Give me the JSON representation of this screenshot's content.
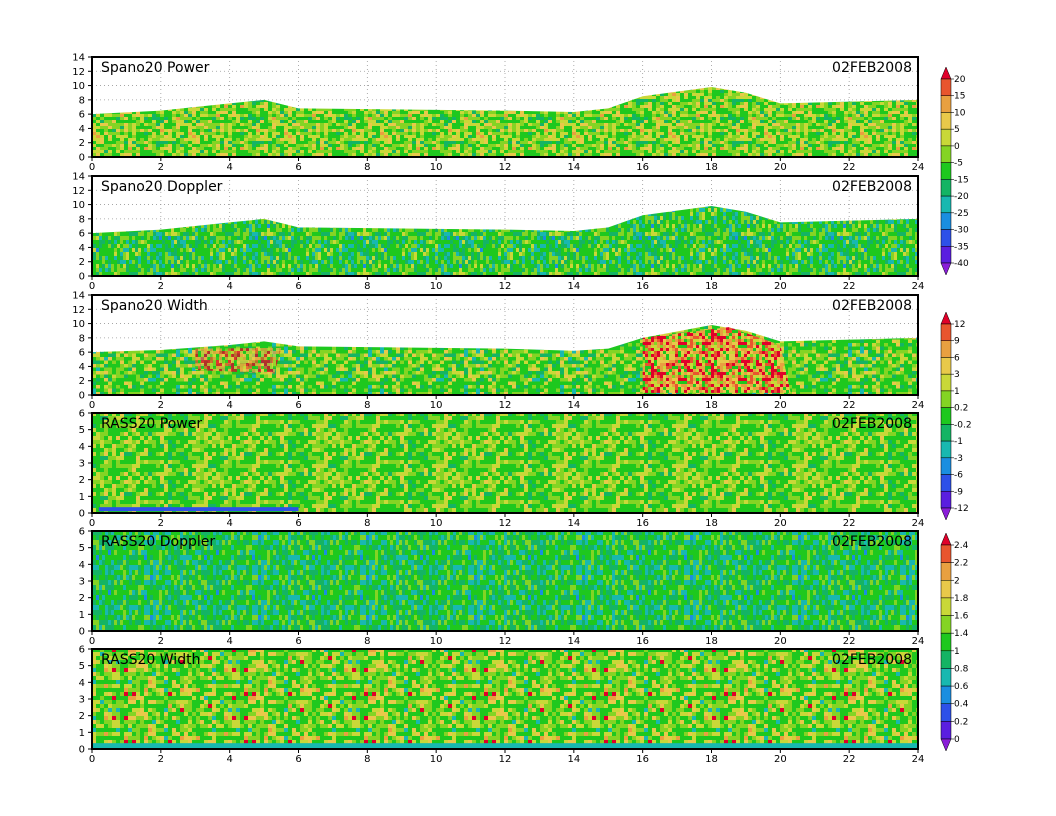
{
  "chart_data": [
    {
      "type": "heatmap",
      "title": "Spano20  Power",
      "date": "02FEB2008",
      "xlim": [
        0,
        24
      ],
      "ylim": [
        0,
        14
      ],
      "xticks": [
        0,
        2,
        4,
        6,
        8,
        10,
        12,
        14,
        16,
        18,
        20,
        22,
        24
      ],
      "yticks": [
        0,
        2,
        4,
        6,
        8,
        10,
        12,
        14
      ],
      "grid": true,
      "colorbar": "power",
      "top_height": [
        [
          0,
          6
        ],
        [
          2,
          6.5
        ],
        [
          4,
          7.5
        ],
        [
          5,
          8
        ],
        [
          6,
          6.8
        ],
        [
          10,
          6.6
        ],
        [
          12,
          6.5
        ],
        [
          14,
          6.3
        ],
        [
          15,
          6.8
        ],
        [
          16,
          8.5
        ],
        [
          18,
          9.8
        ],
        [
          19,
          9
        ],
        [
          20,
          7.5
        ],
        [
          24,
          8
        ]
      ]
    },
    {
      "type": "heatmap",
      "title": "Spano20  Doppler",
      "date": "02FEB2008",
      "xlim": [
        0,
        24
      ],
      "ylim": [
        0,
        14
      ],
      "xticks": [
        0,
        2,
        4,
        6,
        8,
        10,
        12,
        14,
        16,
        18,
        20,
        22,
        24
      ],
      "yticks": [
        0,
        2,
        4,
        6,
        8,
        10,
        12,
        14
      ],
      "grid": true,
      "colorbar": "doppler",
      "top_height": [
        [
          0,
          6
        ],
        [
          2,
          6.5
        ],
        [
          4,
          7.5
        ],
        [
          5,
          8
        ],
        [
          6,
          6.8
        ],
        [
          10,
          6.6
        ],
        [
          12,
          6.5
        ],
        [
          14,
          6.3
        ],
        [
          15,
          6.8
        ],
        [
          16,
          8.5
        ],
        [
          18,
          9.8
        ],
        [
          19,
          9
        ],
        [
          20,
          7.5
        ],
        [
          24,
          8
        ]
      ]
    },
    {
      "type": "heatmap",
      "title": "Spano20  Width",
      "date": "02FEB2008",
      "xlim": [
        0,
        24
      ],
      "ylim": [
        0,
        14
      ],
      "xticks": [
        0,
        2,
        4,
        6,
        8,
        10,
        12,
        14,
        16,
        18,
        20,
        22,
        24
      ],
      "yticks": [
        0,
        2,
        4,
        6,
        8,
        10,
        12,
        14
      ],
      "grid": true,
      "colorbar": "width",
      "top_height": [
        [
          0,
          6
        ],
        [
          2,
          6.3
        ],
        [
          4,
          7
        ],
        [
          5,
          7.5
        ],
        [
          6,
          6.8
        ],
        [
          10,
          6.6
        ],
        [
          12,
          6.5
        ],
        [
          14,
          6.2
        ],
        [
          15,
          6.5
        ],
        [
          16,
          8
        ],
        [
          18,
          9.8
        ],
        [
          19,
          9
        ],
        [
          20,
          7.5
        ],
        [
          24,
          8
        ]
      ]
    },
    {
      "type": "heatmap",
      "title": "RASS20  Power",
      "date": "02FEB2008",
      "xlim": [
        0,
        24
      ],
      "ylim": [
        0,
        6
      ],
      "xticks": [
        0,
        2,
        4,
        6,
        8,
        10,
        12,
        14,
        16,
        18,
        20,
        22,
        24
      ],
      "yticks": [
        0,
        1,
        2,
        3,
        4,
        5,
        6
      ],
      "grid": false,
      "colorbar": "none",
      "top_height": [
        [
          0,
          6
        ],
        [
          24,
          6
        ]
      ]
    },
    {
      "type": "heatmap",
      "title": "RASS20  Doppler",
      "date": "02FEB2008",
      "xlim": [
        0,
        24
      ],
      "ylim": [
        0,
        6
      ],
      "xticks": [
        0,
        2,
        4,
        6,
        8,
        10,
        12,
        14,
        16,
        18,
        20,
        22,
        24
      ],
      "yticks": [
        0,
        1,
        2,
        3,
        4,
        5,
        6
      ],
      "grid": false,
      "colorbar": "rass_doppler",
      "top_height": [
        [
          0,
          6
        ],
        [
          24,
          6
        ]
      ]
    },
    {
      "type": "heatmap",
      "title": "RASS20  Width",
      "date": "02FEB2008",
      "xlim": [
        0,
        24
      ],
      "ylim": [
        0,
        6
      ],
      "xticks": [
        0,
        2,
        4,
        6,
        8,
        10,
        12,
        14,
        16,
        18,
        20,
        22,
        24
      ],
      "yticks": [
        0,
        1,
        2,
        3,
        4,
        5,
        6
      ],
      "grid": false,
      "colorbar": "rass_width",
      "top_height": [
        [
          0,
          6
        ],
        [
          24,
          6
        ]
      ]
    }
  ],
  "colorbars": {
    "power": {
      "labels": [
        "20",
        "15",
        "10",
        "5",
        "0",
        "-5",
        "-15",
        "-20",
        "-25",
        "-30",
        "-35",
        "-40"
      ],
      "colors": [
        "#e0002a",
        "#e8552e",
        "#e8a040",
        "#e8c94a",
        "#c9d838",
        "#84d424",
        "#1ec81e",
        "#14b464",
        "#18b8b0",
        "#1a8ee0",
        "#2d50e8",
        "#5a1ee0",
        "#8a1ed8"
      ]
    },
    "doppler": {
      "labels": [],
      "colors": []
    },
    "width": {
      "labels": [
        "12",
        "9",
        "6",
        "3",
        "1",
        "0.2",
        "-0.2",
        "-1",
        "-3",
        "-6",
        "-9",
        "-12"
      ],
      "colors": [
        "#e0002a",
        "#e8552e",
        "#e8a040",
        "#e8c94a",
        "#c9d838",
        "#84d424",
        "#1ec81e",
        "#14b464",
        "#18b8b0",
        "#1a8ee0",
        "#2d50e8",
        "#5a1ee0",
        "#8a1ed8"
      ]
    },
    "rass_doppler": {
      "labels": [
        "2.4",
        "2.2",
        "2",
        "1.8",
        "1.6",
        "1.4",
        "1",
        "0.8",
        "0.6",
        "0.4",
        "0.2",
        "0"
      ],
      "colors": [
        "#e0002a",
        "#e8552e",
        "#e8a040",
        "#e8c94a",
        "#c9d838",
        "#84d424",
        "#1ec81e",
        "#14b464",
        "#18b8b0",
        "#1a8ee0",
        "#2d50e8",
        "#5a1ee0",
        "#8a1ed8"
      ]
    }
  }
}
